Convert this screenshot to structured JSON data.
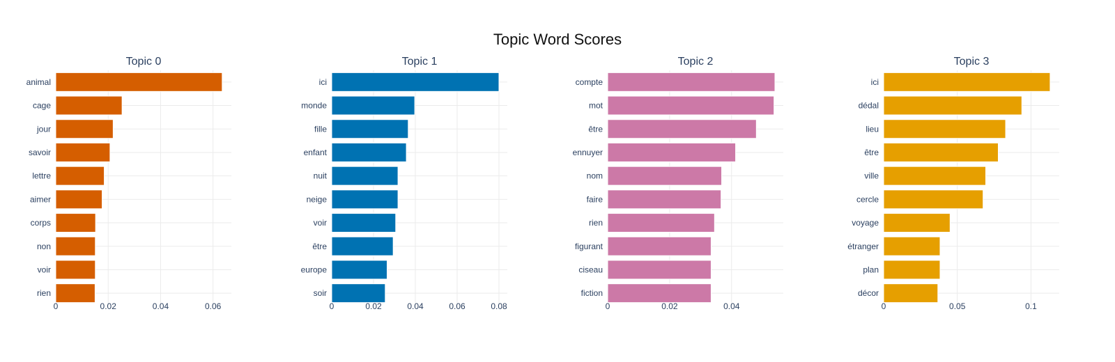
{
  "chart_data": {
    "title": "Topic Word Scores",
    "panels": [
      {
        "type": "bar",
        "orientation": "horizontal",
        "title": "Topic 0",
        "color": "#D55E00",
        "categories": [
          "animal",
          "cage",
          "jour",
          "savoir",
          "lettre",
          "aimer",
          "corps",
          "non",
          "voir",
          "rien"
        ],
        "values": [
          0.0635,
          0.0253,
          0.0219,
          0.0207,
          0.0185,
          0.0177,
          0.0152,
          0.0151,
          0.0151,
          0.015
        ],
        "xlim": [
          0,
          0.067
        ],
        "xticks": [
          0,
          0.02,
          0.04,
          0.06
        ],
        "xtick_labels": [
          "0",
          "0.02",
          "0.04",
          "0.06"
        ]
      },
      {
        "type": "bar",
        "orientation": "horizontal",
        "title": "Topic 1",
        "color": "#0072B2",
        "categories": [
          "ici",
          "monde",
          "fille",
          "enfant",
          "nuit",
          "neige",
          "voir",
          "être",
          "europe",
          "soir"
        ],
        "values": [
          0.08,
          0.0397,
          0.0366,
          0.0357,
          0.0317,
          0.0317,
          0.0306,
          0.0294,
          0.0265,
          0.0256
        ],
        "xlim": [
          0,
          0.084
        ],
        "xticks": [
          0,
          0.02,
          0.04,
          0.06,
          0.08
        ],
        "xtick_labels": [
          "0",
          "0.02",
          "0.04",
          "0.06",
          "0.08"
        ]
      },
      {
        "type": "bar",
        "orientation": "horizontal",
        "title": "Topic 2",
        "color": "#CC79A7",
        "categories": [
          "compte",
          "mot",
          "être",
          "ennuyer",
          "nom",
          "faire",
          "rien",
          "figurant",
          "ciseau",
          "fiction"
        ],
        "values": [
          0.054,
          0.0537,
          0.048,
          0.0413,
          0.0368,
          0.0366,
          0.0345,
          0.0334,
          0.0334,
          0.0334
        ],
        "xlim": [
          0,
          0.0567
        ],
        "xticks": [
          0,
          0.02,
          0.04
        ],
        "xtick_labels": [
          "0",
          "0.02",
          "0.04"
        ]
      },
      {
        "type": "bar",
        "orientation": "horizontal",
        "title": "Topic 3",
        "color": "#E69F00",
        "categories": [
          "ici",
          "dédal",
          "lieu",
          "être",
          "ville",
          "cercle",
          "voyage",
          "étranger",
          "plan",
          "décor"
        ],
        "values": [
          0.113,
          0.0938,
          0.0828,
          0.0778,
          0.0693,
          0.0675,
          0.0451,
          0.0383,
          0.0383,
          0.0368
        ],
        "xlim": [
          0,
          0.1192
        ],
        "xticks": [
          0,
          0.05,
          0.1
        ],
        "xtick_labels": [
          "0",
          "0.05",
          "0.1"
        ]
      }
    ]
  }
}
